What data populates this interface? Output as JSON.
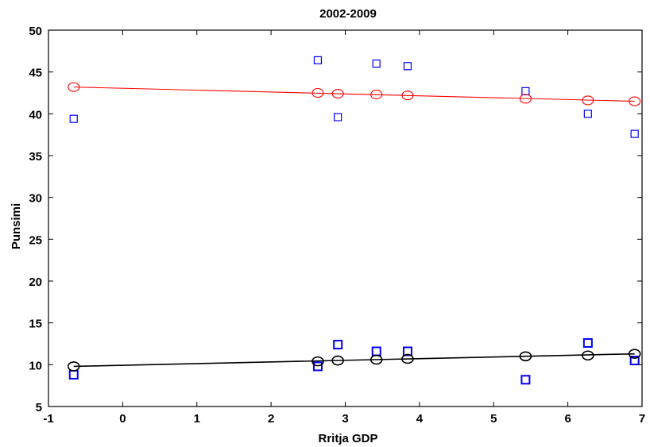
{
  "chart_data": {
    "type": "scatter",
    "title": "2002-2009",
    "xlabel": "Rritja GDP",
    "ylabel": "Punsimi",
    "xlim": [
      -1,
      7
    ],
    "ylim": [
      5,
      50
    ],
    "xticks": [
      -1,
      0,
      1,
      2,
      3,
      4,
      5,
      6,
      7
    ],
    "yticks": [
      5,
      10,
      15,
      20,
      25,
      30,
      35,
      40,
      45,
      50
    ],
    "grid": false,
    "series": [
      {
        "marker": "square",
        "color": "#0000ff",
        "x": [
          -0.66,
          2.63,
          2.9,
          3.42,
          3.84,
          5.43,
          6.27,
          6.9
        ],
        "y": [
          39.4,
          46.4,
          39.6,
          46.0,
          45.7,
          42.7,
          40.0,
          37.6
        ]
      },
      {
        "marker": "circle",
        "color": "#ff0000",
        "x": [
          -0.66,
          2.63,
          2.9,
          3.42,
          3.84,
          5.43,
          6.27,
          6.9
        ],
        "y": [
          43.2,
          42.5,
          42.4,
          42.3,
          42.2,
          41.8,
          41.6,
          41.5
        ],
        "line": [
          [
            -0.66,
            43.2
          ],
          [
            6.9,
            41.5
          ]
        ]
      },
      {
        "marker": "square",
        "color": "#0000ff",
        "x": [
          -0.66,
          2.63,
          2.9,
          3.42,
          3.84,
          5.43,
          6.27,
          6.9
        ],
        "y": [
          8.8,
          9.8,
          12.4,
          11.6,
          11.6,
          8.2,
          12.6,
          10.5
        ]
      },
      {
        "marker": "circle",
        "color": "#000000",
        "x": [
          -0.66,
          2.63,
          2.9,
          3.42,
          3.84,
          5.43,
          6.27,
          6.9
        ],
        "y": [
          9.8,
          10.4,
          10.5,
          10.6,
          10.7,
          11.0,
          11.1,
          11.3
        ],
        "line": [
          [
            -0.66,
            9.8
          ],
          [
            6.9,
            11.3
          ]
        ]
      }
    ]
  }
}
